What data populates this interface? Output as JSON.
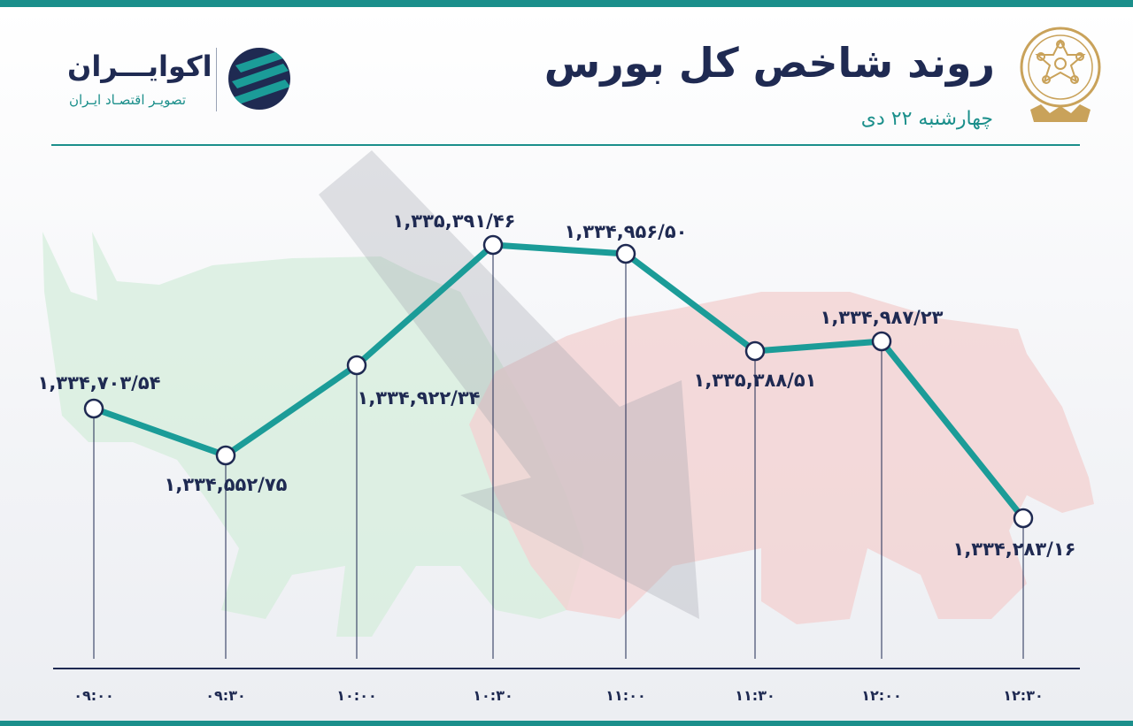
{
  "header": {
    "title": "روند شاخص کل بورس",
    "subtitle": "چهارشنبه ۲۲ دی"
  },
  "brand": {
    "name": "اکوایـــران",
    "tagline": "تصویـر اقتصـاد ایـران"
  },
  "colors": {
    "line": "#1b9c98",
    "text": "#1f2a52",
    "accent": "#1b8f8b",
    "emblem": "#c9a25a"
  },
  "icons": {
    "emblem": "stock-exchange-emblem-icon",
    "brand": "ecoiran-logo-icon",
    "bull": "bull-silhouette",
    "bear": "bear-silhouette"
  },
  "chart_data": {
    "type": "line",
    "x": [
      "09:00",
      "09:30",
      "10:00",
      "10:30",
      "11:00",
      "11:30",
      "12:00",
      "12:30"
    ],
    "x_tick_labels": [
      "۰۹:۰۰",
      "۰۹:۳۰",
      "۱۰:۰۰",
      "۱۰:۳۰",
      "۱۱:۰۰",
      "۱۱:۳۰",
      "۱۲:۰۰",
      "۱۲:۳۰"
    ],
    "values": [
      1334703.54,
      1334552.75,
      1334922.34,
      1335391.46,
      1334956.5,
      1335388.51,
      1334987.23,
      1334283.16
    ],
    "data_labels": [
      "۱,۳۳۴,۷۰۳/۵۴",
      "۱,۳۳۴,۵۵۲/۷۵",
      "۱,۳۳۴,۹۲۲/۳۴",
      "۱,۳۳۵,۳۹۱/۴۶",
      "۱,۳۳۴,۹۵۶/۵۰",
      "۱,۳۳۵,۳۸۸/۵۱",
      "۱,۳۳۴,۹۸۷/۲۳",
      "۱,۳۳۴,۲۸۳/۱۶"
    ],
    "grid": false
  }
}
